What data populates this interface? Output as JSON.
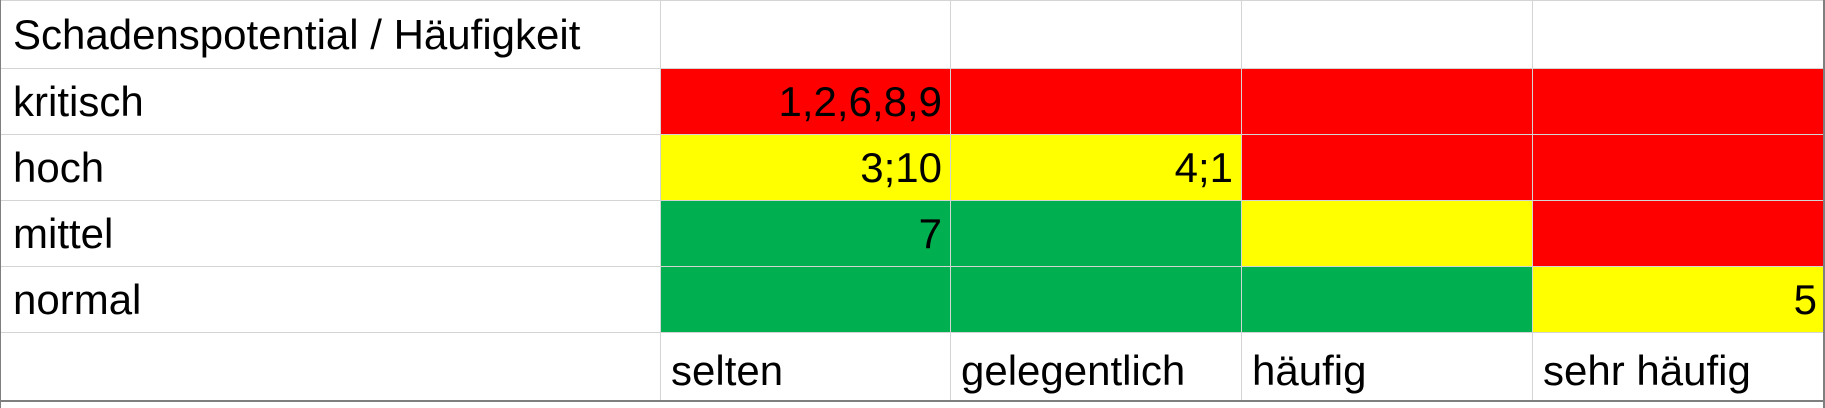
{
  "header": {
    "corner_label": "Schadenspotential / Häufigkeit"
  },
  "colors": {
    "red": "#ff0000",
    "yellow": "#ffff00",
    "green": "#00b050",
    "white": "#ffffff"
  },
  "rows": [
    {
      "label": "kritisch",
      "cells": [
        {
          "color": "red",
          "value": "1,2,6,8,9"
        },
        {
          "color": "red",
          "value": ""
        },
        {
          "color": "red",
          "value": ""
        },
        {
          "color": "red",
          "value": ""
        }
      ]
    },
    {
      "label": "hoch",
      "cells": [
        {
          "color": "yellow",
          "value": "3;10"
        },
        {
          "color": "yellow",
          "value": "4;1"
        },
        {
          "color": "red",
          "value": ""
        },
        {
          "color": "red",
          "value": ""
        }
      ]
    },
    {
      "label": "mittel",
      "cells": [
        {
          "color": "green",
          "value": "7"
        },
        {
          "color": "green",
          "value": ""
        },
        {
          "color": "yellow",
          "value": ""
        },
        {
          "color": "red",
          "value": ""
        }
      ]
    },
    {
      "label": "normal",
      "cells": [
        {
          "color": "green",
          "value": ""
        },
        {
          "color": "green",
          "value": ""
        },
        {
          "color": "green",
          "value": ""
        },
        {
          "color": "yellow",
          "value": "5"
        }
      ]
    }
  ],
  "columns": [
    "selten",
    "gelegentlich",
    "häufig",
    "sehr häufig"
  ]
}
